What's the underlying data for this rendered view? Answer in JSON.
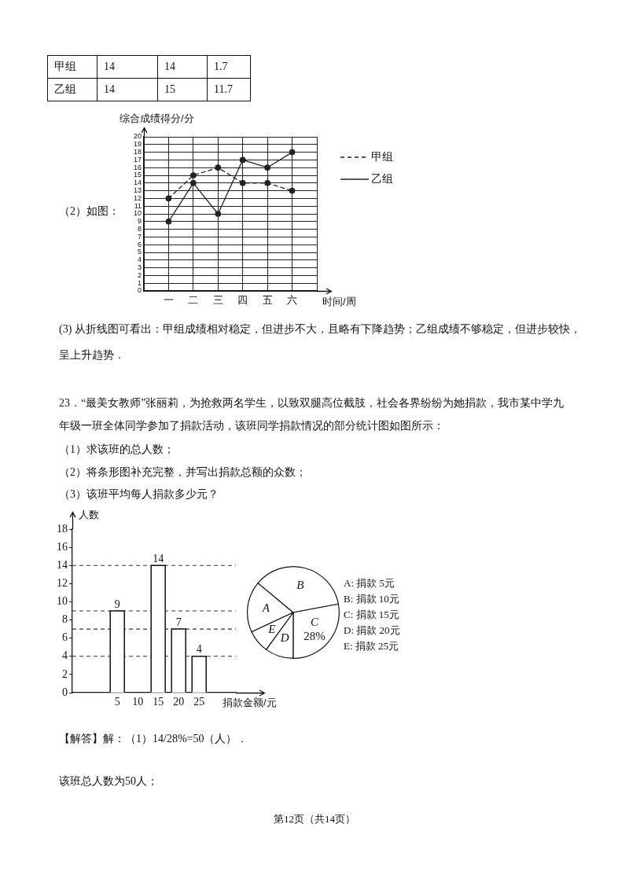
{
  "chart_data": [
    {
      "type": "other",
      "annotations": [
        "甲组",
        "14",
        "14",
        "1.7",
        "乙组",
        "14",
        "15",
        "11.7"
      ]
    },
    {
      "type": "line",
      "categories": [
        "一",
        "二",
        "三",
        "四",
        "五",
        "六"
      ],
      "series": [
        {
          "name": "甲组",
          "color": "#222222",
          "line_style": "dashed",
          "values": [
            12,
            15,
            16,
            14,
            14,
            13
          ]
        },
        {
          "name": "乙组",
          "color": "#222222",
          "line_style": "solid",
          "values": [
            9,
            14,
            10,
            17,
            16,
            18
          ]
        }
      ],
      "xlabel": "时间/周",
      "ylabel": "综合成绩得分/分",
      "ylim": [
        0,
        20
      ],
      "yticks": [
        0,
        1,
        2,
        3,
        4,
        5,
        6,
        7,
        8,
        9,
        10,
        11,
        12,
        13,
        14,
        15,
        16,
        17,
        18,
        19,
        20
      ],
      "grid": true,
      "legend": "right",
      "marker": "circle",
      "annotations": [
        "（2）如图：",
        "(3) 从折线图可看出：甲组成绩相对稳定，但进步不大，且略有下降趋势；乙组成绩不够稳定，但进步较快，呈上升趋势．"
      ]
    },
    {
      "type": "other",
      "annotations": [
        "23．“最美女教师”张丽莉，为抢救两名学生，以致双腿高位截肢，社会各界纷纷为她捐款，我市某中学九年级一班全体同学参加了捐款活动，该班同学捐款情况的部分统计图如图所示：",
        "（1）求该班的总人数；",
        "（2）将条形图补充完整，并写出捐款总额的众数；",
        "（3）该班平均每人捐款多少元？"
      ]
    },
    {
      "type": "bar",
      "categories": [
        "5",
        "10",
        "15",
        "20",
        "25"
      ],
      "values": [
        9,
        null,
        14,
        7,
        4
      ],
      "color": "#ffffff",
      "xlabel": "捐款金额/元",
      "ylabel": "人数",
      "ylim": [
        0,
        18
      ],
      "yticks": [
        0,
        2,
        4,
        6,
        8,
        10,
        12,
        14,
        16,
        18
      ],
      "data_labels": true,
      "ref_lines": [
        {
          "axis": "y",
          "value": 14,
          "line_style": "dashed"
        },
        {
          "axis": "y",
          "value": 9,
          "line_style": "dashed"
        },
        {
          "axis": "y",
          "value": 7,
          "line_style": "dashed"
        },
        {
          "axis": "y",
          "value": 4,
          "line_style": "dashed"
        }
      ]
    },
    {
      "type": "pie",
      "categories": [
        "A",
        "B",
        "C",
        "D",
        "E"
      ],
      "values": [
        18,
        36,
        28,
        10,
        8
      ],
      "colors": [
        "#ffffff",
        "#ffffff",
        "#ffffff",
        "#ffffff",
        "#ffffff"
      ],
      "value_labels": [
        null,
        null,
        "28%",
        null,
        null
      ],
      "annotations": [
        "A: 捐款 5元",
        "B: 捐款 10元",
        "C: 捐款 15元",
        "D: 捐款 20元",
        "E: 捐款 25元"
      ]
    },
    {
      "type": "other",
      "annotations": [
        "【解答】解：（1）14/28%=50（人）．",
        "该班总人数为50人；",
        "第12页（共14页）"
      ]
    }
  ]
}
